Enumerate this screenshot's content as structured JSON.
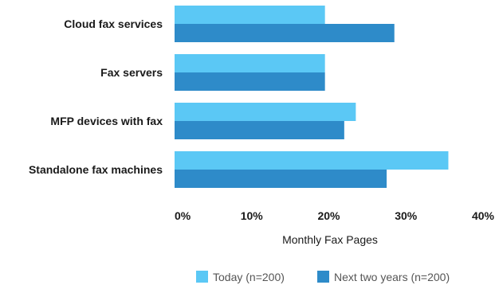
{
  "chart_data": {
    "type": "bar",
    "orientation": "horizontal",
    "categories": [
      "Cloud fax services",
      "Fax servers",
      "MFP devices with fax",
      "Standalone fax machines"
    ],
    "series": [
      {
        "name": "Today (n=200)",
        "color": "#5bc8f5",
        "values": [
          19.5,
          19.5,
          23.5,
          35.5
        ]
      },
      {
        "name": "Next two years (n=200)",
        "color": "#2e8bc9",
        "values": [
          28.5,
          19.5,
          22,
          27.5
        ]
      }
    ],
    "xlabel": "Monthly Fax Pages",
    "xlim": [
      0,
      40
    ],
    "xticks": [
      "0%",
      "10%",
      "20%",
      "30%",
      "40%"
    ],
    "xtick_values": [
      0,
      10,
      20,
      30,
      40
    ],
    "grid": false,
    "legend_position": "bottom-right"
  }
}
